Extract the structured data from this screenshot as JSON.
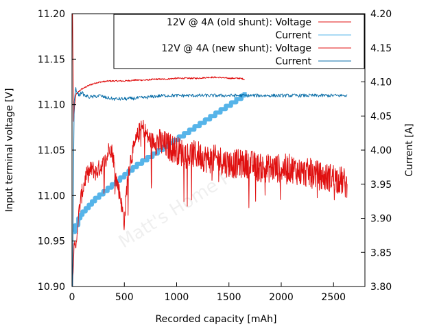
{
  "chart_data": {
    "type": "line",
    "title": "",
    "xlabel": "Recorded capacity [mAh]",
    "ylabel": "Input terminal voltage [V]",
    "y2label": "Current [A]",
    "xlim": [
      0,
      2800
    ],
    "ylim": [
      10.9,
      11.2
    ],
    "y2lim": [
      3.8,
      4.2
    ],
    "x_ticks": [
      "0",
      "500",
      "1000",
      "1500",
      "2000",
      "2500"
    ],
    "x_tick_values": [
      0,
      500,
      1000,
      1500,
      2000,
      2500
    ],
    "y_ticks": [
      "10.90",
      "10.95",
      "11.00",
      "11.05",
      "11.10",
      "11.15",
      "11.20"
    ],
    "y_tick_values": [
      10.9,
      10.95,
      11.0,
      11.05,
      11.1,
      11.15,
      11.2
    ],
    "y2_ticks": [
      "3.80",
      "3.85",
      "3.90",
      "3.95",
      "4.00",
      "4.05",
      "4.10",
      "4.15",
      "4.20"
    ],
    "y2_tick_values": [
      3.8,
      3.85,
      3.9,
      3.95,
      4.0,
      4.05,
      4.1,
      4.15,
      4.2
    ],
    "grid": false,
    "legend_position": "top-right",
    "watermark": "Matt's Home Page",
    "series": [
      {
        "name": "12V @ 4A (old shunt): Voltage",
        "axis": "y",
        "color": "#e01010",
        "style": "line",
        "x": [
          5,
          15,
          25,
          35,
          45,
          55,
          70,
          90,
          110,
          140,
          180,
          230,
          280,
          350,
          420,
          500,
          600,
          700,
          800,
          900,
          1000,
          1100,
          1200,
          1300,
          1400,
          1500,
          1600,
          1650
        ],
        "y": [
          11.2,
          11.08,
          11.1,
          11.11,
          11.112,
          11.113,
          11.115,
          11.117,
          11.118,
          11.12,
          11.122,
          11.124,
          11.125,
          11.126,
          11.126,
          11.126,
          11.127,
          11.127,
          11.128,
          11.128,
          11.129,
          11.129,
          11.129,
          11.13,
          11.13,
          11.129,
          11.129,
          11.128
        ]
      },
      {
        "name": "Current",
        "axis": "y2",
        "color": "#56b4e9",
        "style": "step",
        "x": [
          15,
          30,
          60,
          80,
          100,
          130,
          160,
          190,
          220,
          260,
          300,
          340,
          380,
          420,
          460,
          500,
          540,
          580,
          620,
          670,
          720,
          770,
          820,
          870,
          920,
          970,
          1020,
          1070,
          1120,
          1170,
          1220,
          1270,
          1320,
          1370,
          1420,
          1470,
          1520,
          1570,
          1620,
          1650
        ],
        "y": [
          3.88,
          3.89,
          3.9,
          3.905,
          3.91,
          3.915,
          3.92,
          3.925,
          3.93,
          3.935,
          3.94,
          3.945,
          3.95,
          3.955,
          3.96,
          3.965,
          3.97,
          3.975,
          3.98,
          3.985,
          3.99,
          3.995,
          4.0,
          4.005,
          4.01,
          4.015,
          4.02,
          4.025,
          4.03,
          4.035,
          4.04,
          4.045,
          4.05,
          4.055,
          4.06,
          4.065,
          4.07,
          4.075,
          4.08,
          4.085
        ]
      },
      {
        "name": "12V @ 4A (new shunt): Voltage",
        "axis": "y",
        "color": "#e01010",
        "style": "noisy",
        "x": [
          5,
          20,
          35,
          50,
          70,
          90,
          110,
          130,
          160,
          190,
          230,
          260,
          300,
          330,
          360,
          390,
          420,
          460,
          500,
          530,
          560,
          600,
          640,
          680,
          720,
          760,
          800,
          900,
          1000,
          1100,
          1200,
          1300,
          1400,
          1500,
          1600,
          1700,
          1800,
          1900,
          2000,
          2100,
          2200,
          2300,
          2400,
          2500,
          2600,
          2630
        ],
        "y": [
          10.9,
          10.95,
          10.94,
          10.96,
          10.985,
          11.0,
          11.01,
          11.02,
          11.025,
          11.03,
          11.025,
          11.03,
          11.035,
          11.04,
          11.055,
          11.045,
          11.02,
          11.0,
          10.97,
          11.02,
          11.04,
          11.055,
          11.07,
          11.075,
          11.065,
          11.06,
          11.06,
          11.055,
          11.05,
          11.045,
          11.045,
          11.04,
          11.04,
          11.035,
          11.035,
          11.035,
          11.03,
          11.03,
          11.03,
          11.03,
          11.025,
          11.025,
          11.02,
          11.02,
          11.015,
          11.01
        ]
      },
      {
        "name": "Current",
        "axis": "y2",
        "color": "#0a6ea8",
        "style": "line",
        "x": [
          5,
          20,
          35,
          50,
          70,
          90,
          120,
          160,
          200,
          260,
          320,
          400,
          500,
          600,
          700,
          800,
          900,
          1000,
          1200,
          1400,
          1600,
          1800,
          2000,
          2200,
          2400,
          2600,
          2630
        ],
        "y": [
          3.8,
          4.07,
          4.09,
          4.085,
          4.08,
          4.085,
          4.08,
          4.078,
          4.078,
          4.08,
          4.077,
          4.075,
          4.075,
          4.076,
          4.077,
          4.079,
          4.08,
          4.08,
          4.08,
          4.08,
          4.08,
          4.08,
          4.08,
          4.08,
          4.08,
          4.08,
          4.08
        ]
      }
    ]
  }
}
